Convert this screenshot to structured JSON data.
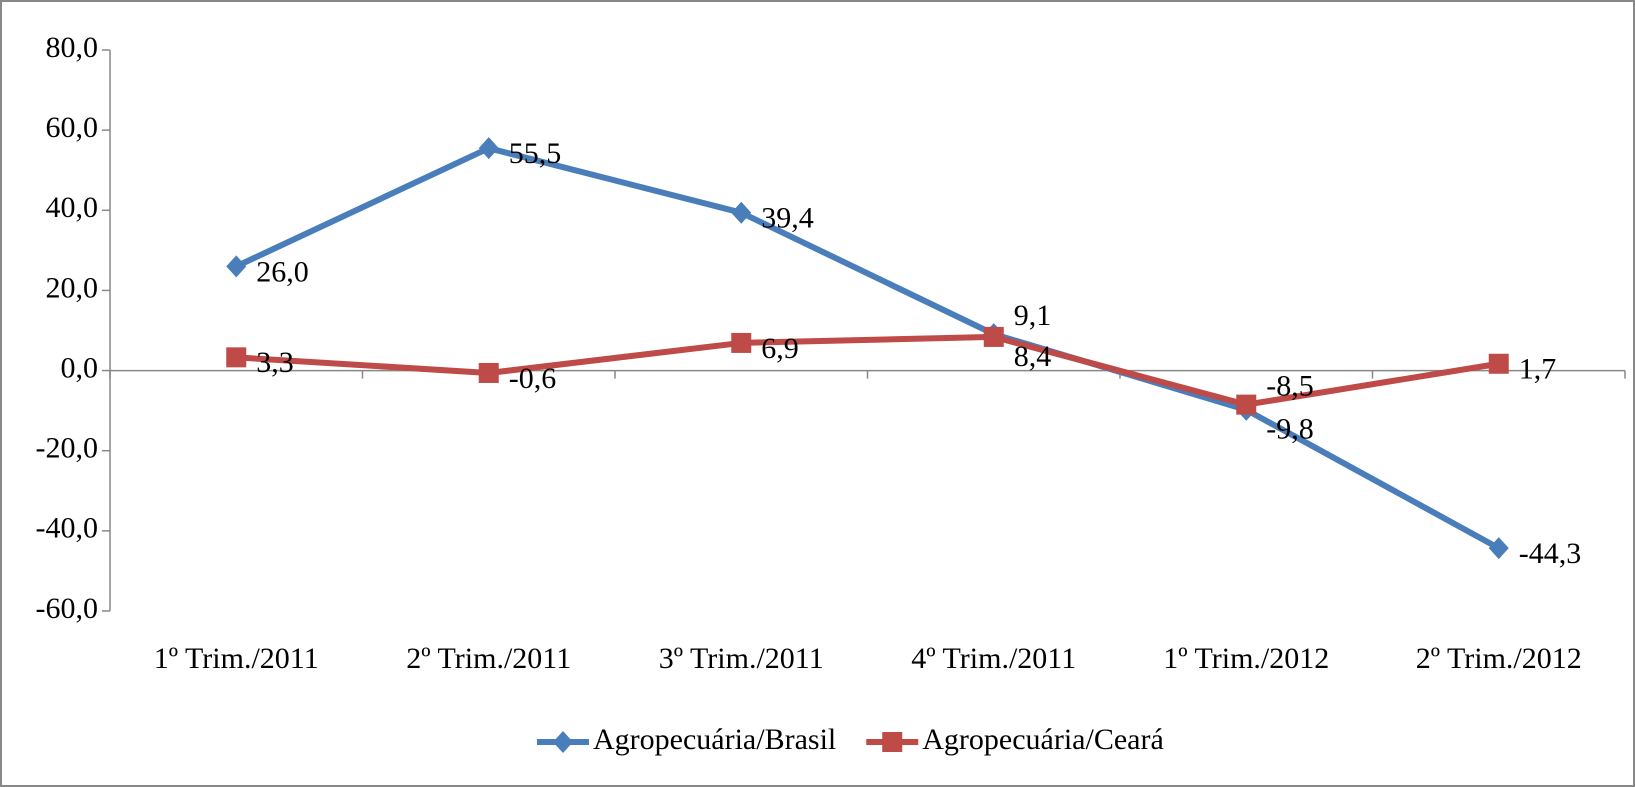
{
  "chart_data": {
    "type": "line",
    "categories": [
      "1º Trim./2011",
      "2º Trim./2011",
      "3º Trim./2011",
      "4º Trim./2011",
      "1º Trim./2012",
      "2º Trim./2012"
    ],
    "series": [
      {
        "name": "Agropecuária/Brasil",
        "color": "#4a7ebb",
        "marker": "diamond",
        "values": [
          26.0,
          55.5,
          39.4,
          9.1,
          -9.8,
          -44.3
        ],
        "value_labels": [
          "26,0",
          "55,5",
          "39,4",
          "9,1",
          "-9,8",
          "-44,3"
        ]
      },
      {
        "name": "Agropecuária/Ceará",
        "color": "#be4b48",
        "marker": "square",
        "values": [
          3.3,
          -0.6,
          6.9,
          8.4,
          -8.5,
          1.7
        ],
        "value_labels": [
          "3,3",
          "-0,6",
          "6,9",
          "8,4",
          "-8,5",
          "1,7"
        ]
      }
    ],
    "ylim": [
      -60,
      80
    ],
    "yticks": [
      {
        "value": -60,
        "label": "-60,0"
      },
      {
        "value": -40,
        "label": "-40,0"
      },
      {
        "value": -20,
        "label": "-20,0"
      },
      {
        "value": 0,
        "label": "0,0"
      },
      {
        "value": 20,
        "label": "20,0"
      },
      {
        "value": 40,
        "label": "40,0"
      },
      {
        "value": 60,
        "label": "60,0"
      },
      {
        "value": 80,
        "label": "80,0"
      }
    ],
    "legend": "bottom"
  }
}
